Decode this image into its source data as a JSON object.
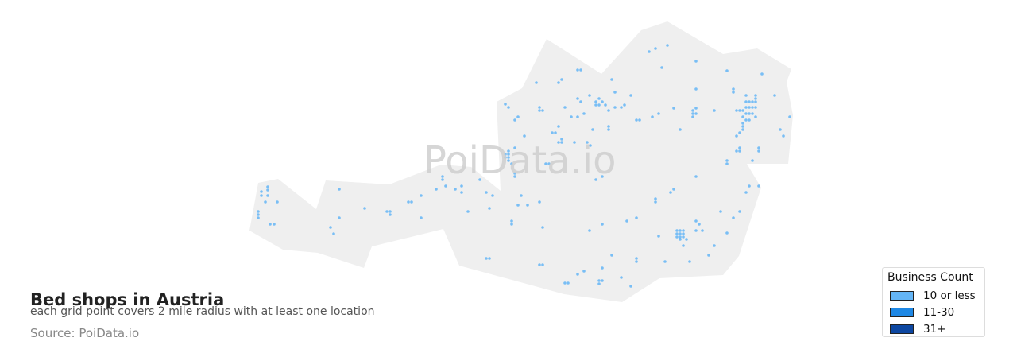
{
  "title": "Bed shops in Austria",
  "subtitle": "each grid point covers 2 mile radius with at least one location",
  "source": "Source: PoiData.io",
  "watermark": "PoiData.io",
  "colors": {
    "land": "#efefef",
    "dot": "#64b5f6"
  },
  "legend": {
    "title": "Business Count",
    "items": [
      {
        "label": "10 or less",
        "color": "#64b5f6"
      },
      {
        "label": "11-30",
        "color": "#1e88e5"
      },
      {
        "label": "31+",
        "color": "#0d47a1"
      }
    ]
  }
}
